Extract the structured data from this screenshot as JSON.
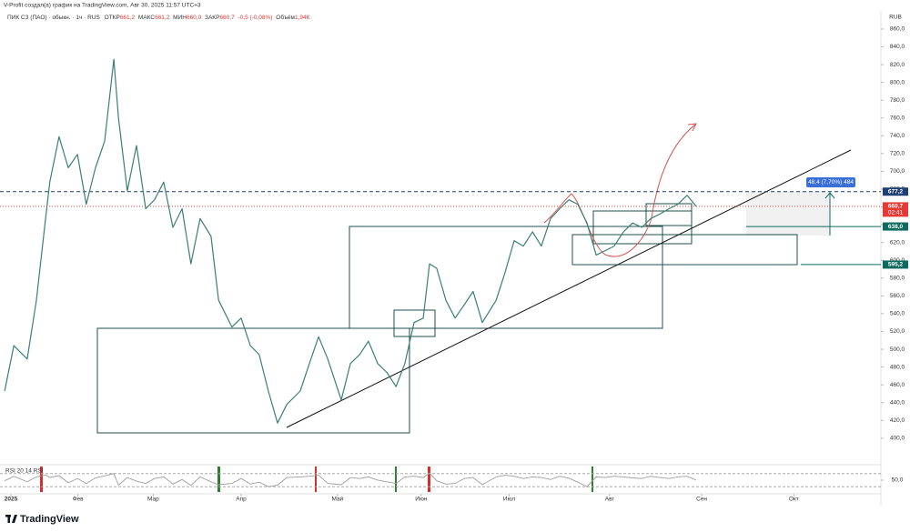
{
  "header": {
    "attribution": "V-Profit создал(а) график на TradingView.com, Авг 30, 2025 11:57 UTC+3",
    "symbol": "ПИК СЗ (ПАО) · обыкн. · 1ч · RUS",
    "ohlc": [
      {
        "label": "ОТКР",
        "value": "661,2"
      },
      {
        "label": "МАКС",
        "value": "661,2"
      },
      {
        "label": "МИН",
        "value": "660,0"
      },
      {
        "label": "ЗАКР",
        "value": "660,7"
      }
    ],
    "change": "-0,5 (-0,08%)",
    "volume_label": "Объём",
    "volume": "1,94К"
  },
  "chart_data": {
    "type": "line",
    "currency": "RUB",
    "x": [
      -1.5,
      0.7,
      3.9,
      6.1,
      8.3,
      9.3,
      11.5,
      13.7,
      15.9,
      18,
      20.2,
      22.4,
      24.6,
      25.7,
      27.8,
      30,
      32.2,
      34.3,
      36.5,
      38.7,
      40.9,
      43,
      45.2,
      47.8,
      49.6,
      52.8,
      55,
      57.2,
      59.3,
      61.5,
      63.7,
      65.9,
      69.1,
      71.3,
      73.5,
      75.7,
      78.9,
      81.1,
      83.3,
      85.4,
      87.6,
      89.8,
      92,
      94.1,
      96.3,
      98.5,
      100,
      101.7,
      103.9,
      106.1,
      108.3,
      110.4,
      112.6,
      115.9,
      118,
      120.2,
      122.4,
      124.6,
      126.7,
      128.9,
      131.1,
      133.3,
      135.4,
      137.6,
      139.8,
      142,
      144.1,
      146.3,
      148.5,
      150.7,
      152.8,
      155,
      157.2,
      159.3,
      161.5,
      163.7
    ],
    "series": [
      {
        "color": "#3b7f74",
        "values": [
          453,
          504,
          489,
          555,
          647,
          688,
          739,
          704,
          719,
          663,
          704,
          734,
          826,
          760,
          678,
          729,
          658,
          668,
          688,
          637,
          658,
          596,
          647,
          627,
          555,
          525,
          535,
          504,
          494,
          453,
          417,
          438,
          453,
          484,
          514,
          489,
          443,
          484,
          494,
          509,
          484,
          474,
          458,
          484,
          530,
          535,
          596,
          591,
          555,
          535,
          550,
          565,
          530,
          555,
          586,
          622,
          616,
          632,
          616,
          647,
          658,
          668,
          663,
          642,
          606,
          611,
          616,
          632,
          642,
          637,
          647,
          652,
          658,
          663,
          673,
          660.7
        ]
      }
    ],
    "xlim": [
      -2.6,
      207.8
    ],
    "xticks": [
      {
        "value": 0,
        "label": "2025"
      },
      {
        "value": 16,
        "label": "Фев"
      },
      {
        "value": 34,
        "label": "Мар"
      },
      {
        "value": 55,
        "label": "Апр"
      },
      {
        "value": 78,
        "label": "Май"
      },
      {
        "value": 98,
        "label": "Июн"
      },
      {
        "value": 119,
        "label": "Июл"
      },
      {
        "value": 143,
        "label": "Авг"
      },
      {
        "value": 165,
        "label": "Сен"
      },
      {
        "value": 187,
        "label": "Окт"
      }
    ],
    "ylim": [
      371.2,
      880.4
    ],
    "yticks": [
      {
        "value": 400,
        "label": "400,0"
      },
      {
        "value": 420,
        "label": "420,0"
      },
      {
        "value": 440,
        "label": "440,0"
      },
      {
        "value": 460,
        "label": "460,0"
      },
      {
        "value": 480,
        "label": "480,0"
      },
      {
        "value": 500,
        "label": "500,0"
      },
      {
        "value": 520,
        "label": "520,0"
      },
      {
        "value": 540,
        "label": "540,0"
      },
      {
        "value": 560,
        "label": "560,0"
      },
      {
        "value": 580,
        "label": "580,0"
      },
      {
        "value": 600,
        "label": "600,0"
      },
      {
        "value": 620,
        "label": "620,0"
      },
      {
        "value": 640,
        "label": "640,0"
      },
      {
        "value": 660,
        "label": "660,0"
      },
      {
        "value": 680,
        "label": "680,0"
      },
      {
        "value": 700,
        "label": "700,0"
      },
      {
        "value": 720,
        "label": "720,0"
      },
      {
        "value": 740,
        "label": "740,0"
      },
      {
        "value": 760,
        "label": "760,0"
      },
      {
        "value": 780,
        "label": "780,0"
      },
      {
        "value": 800,
        "label": "800,0"
      },
      {
        "value": 820,
        "label": "820,0"
      },
      {
        "value": 840,
        "label": "840,0"
      },
      {
        "value": 860,
        "label": "860,0"
      }
    ],
    "grid": false,
    "levels": [
      {
        "value": 677.2,
        "label": "677,2",
        "color": "#1e3f73"
      },
      {
        "value": 660.7,
        "label": "660,7",
        "color": "#e53935",
        "countdown": "02:41"
      },
      {
        "value": 638.0,
        "label": "638,0",
        "color": "#0d6b5e"
      },
      {
        "value": 595.2,
        "label": "595,2",
        "color": "#0d6b5e"
      }
    ],
    "measure": "48,4 (7,70%) 484",
    "rsi": {
      "label": "RSI 20 14 RSI",
      "color": "#9e9e9e",
      "ylim": [
        0,
        100
      ],
      "yticks": [
        {
          "value": 50,
          "label": "50,0"
        }
      ],
      "bands": [
        30,
        70
      ],
      "values": [
        48,
        62,
        45,
        60,
        66,
        58,
        64,
        42,
        55,
        40,
        57,
        63,
        70,
        35,
        58,
        47,
        40,
        55,
        60,
        38,
        52,
        34,
        60,
        45,
        36,
        40,
        55,
        38,
        44,
        30,
        35,
        58,
        60,
        62,
        65,
        40,
        36,
        58,
        55,
        60,
        50,
        45,
        40,
        60,
        62,
        58,
        72,
        48,
        38,
        40,
        55,
        58,
        36,
        60,
        65,
        62,
        55,
        60,
        58,
        52,
        62,
        56,
        44,
        30,
        60,
        58,
        62,
        60,
        57,
        55,
        62,
        58,
        55,
        60,
        62,
        50
      ]
    }
  },
  "footer": {
    "logo": "TradingView"
  }
}
